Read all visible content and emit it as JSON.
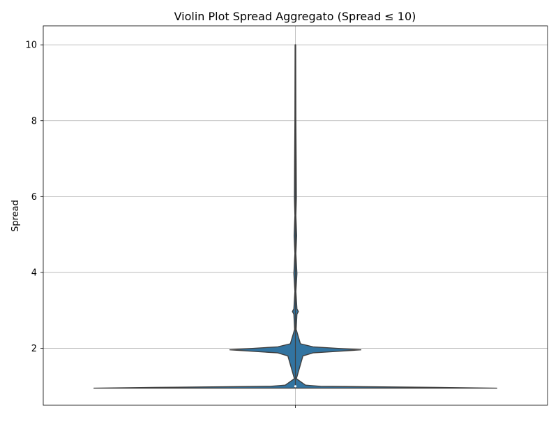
{
  "chart_data": {
    "type": "violin",
    "title": "Violin Plot Spread Aggregato (Spread ≤ 10)",
    "xlabel": "",
    "ylabel": "Spread",
    "ylim": [
      0.5,
      10.5
    ],
    "yticks": [
      2,
      4,
      6,
      8,
      10
    ],
    "grid": true,
    "violin": {
      "color": "#3274a1",
      "edge_color": "#3f3f3f",
      "density": [
        {
          "y": 0.95,
          "half_width": 0.8
        },
        {
          "y": 0.97,
          "half_width": 0.56
        },
        {
          "y": 1.0,
          "half_width": 0.1
        },
        {
          "y": 1.03,
          "half_width": 0.04
        },
        {
          "y": 1.2,
          "half_width": 0.004
        },
        {
          "y": 1.8,
          "half_width": 0.03
        },
        {
          "y": 1.88,
          "half_width": 0.07
        },
        {
          "y": 1.96,
          "half_width": 0.26
        },
        {
          "y": 2.04,
          "half_width": 0.07
        },
        {
          "y": 2.12,
          "half_width": 0.02
        },
        {
          "y": 2.5,
          "half_width": 0.003
        },
        {
          "y": 2.9,
          "half_width": 0.006
        },
        {
          "y": 2.97,
          "half_width": 0.012
        },
        {
          "y": 3.04,
          "half_width": 0.006
        },
        {
          "y": 3.5,
          "half_width": 0.002
        },
        {
          "y": 3.97,
          "half_width": 0.006
        },
        {
          "y": 4.5,
          "half_width": 0.002
        },
        {
          "y": 4.97,
          "half_width": 0.005
        },
        {
          "y": 5.5,
          "half_width": 0.002
        },
        {
          "y": 5.97,
          "half_width": 0.004
        },
        {
          "y": 6.97,
          "half_width": 0.003
        },
        {
          "y": 7.97,
          "half_width": 0.002
        },
        {
          "y": 10.0,
          "half_width": 0.001
        }
      ]
    }
  }
}
